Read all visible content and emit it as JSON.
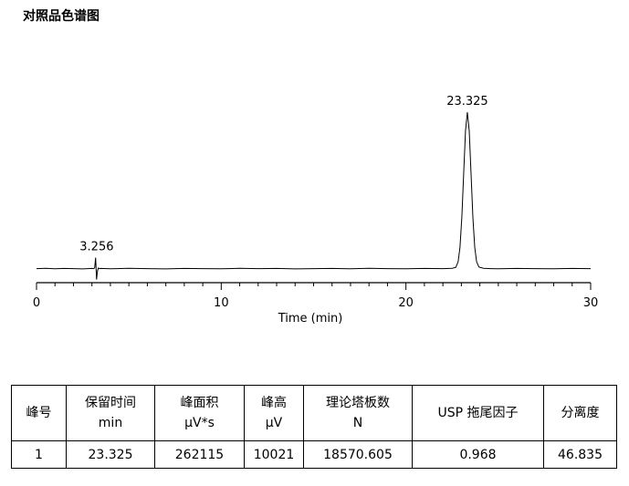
{
  "chart_data": {
    "type": "line",
    "title": "对照品色谱图",
    "xlabel": "Time (min)",
    "x": [
      0,
      0.5,
      1,
      1.5,
      2,
      2.5,
      3,
      3.1,
      3.15,
      3.2,
      3.25,
      3.3,
      3.35,
      3.4,
      3.5,
      4,
      5,
      6,
      7,
      8,
      9,
      10,
      11,
      12,
      13,
      14,
      15,
      16,
      17,
      18,
      19,
      20,
      21,
      22,
      22.5,
      22.7,
      22.825,
      22.925,
      23.025,
      23.125,
      23.225,
      23.325,
      23.425,
      23.525,
      23.625,
      23.725,
      23.825,
      23.95,
      24.2,
      24.6,
      25,
      26,
      27,
      28,
      29,
      30
    ],
    "values": [
      0,
      20,
      -10,
      10,
      0,
      -20,
      10,
      0,
      60,
      700,
      -700,
      -150,
      40,
      0,
      10,
      -10,
      20,
      0,
      -20,
      10,
      0,
      -10,
      20,
      0,
      10,
      -20,
      0,
      10,
      -10,
      20,
      0,
      -10,
      10,
      0,
      20,
      80,
      440,
      1360,
      3260,
      6080,
      8840,
      10021,
      8840,
      6080,
      3260,
      1360,
      440,
      100,
      20,
      0,
      -10,
      10,
      0,
      -10,
      10,
      0
    ],
    "color": "#000000",
    "xlim": [
      0,
      30
    ],
    "xticks": [
      0,
      10,
      20,
      30
    ],
    "xminorticks": [
      1,
      2,
      3,
      4,
      5,
      6,
      7,
      8,
      9,
      11,
      12,
      13,
      14,
      15,
      16,
      17,
      18,
      19,
      21,
      22,
      23,
      24,
      25,
      26,
      27,
      28,
      29
    ],
    "ylim": [
      -900,
      13700
    ],
    "peak_labels": [
      3.256,
      23.325
    ]
  },
  "table": {
    "header": [
      [
        "峰号"
      ],
      [
        "保留时间",
        "min"
      ],
      [
        "峰面积",
        "μV*s"
      ],
      [
        "峰高",
        "μV"
      ],
      [
        "理论塔板数",
        "N"
      ],
      [
        "USP 拖尾因子"
      ],
      [
        "分离度"
      ]
    ],
    "rows": [
      [
        "1",
        "23.325",
        "262115",
        "10021",
        "18570.605",
        "0.968",
        "46.835"
      ]
    ]
  }
}
